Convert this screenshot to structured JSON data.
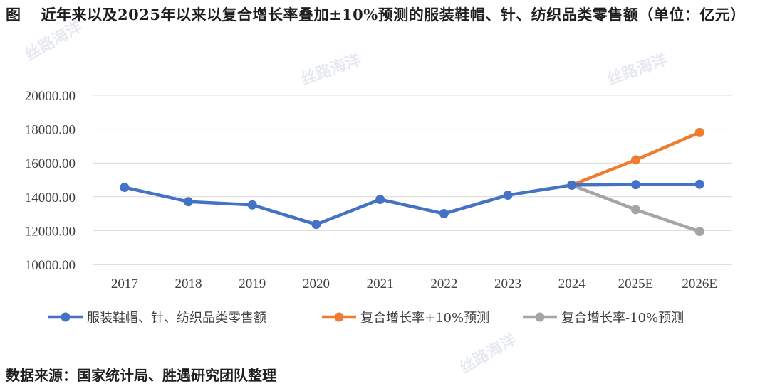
{
  "figure": {
    "label": "图",
    "title": "近年来以及2025年以来以复合增长率叠加±10%预测的服装鞋帽、针、纺织品类零售额（单位：亿元）"
  },
  "source": "数据来源：国家统计局、胜遇研究团队整理",
  "watermark": "丝路海洋",
  "chart_data": {
    "type": "line",
    "categories": [
      "2017",
      "2018",
      "2019",
      "2020",
      "2021",
      "2022",
      "2023",
      "2024",
      "2025E",
      "2026E"
    ],
    "ylim": [
      10000,
      20000
    ],
    "yticks": [
      "10000.00",
      "12000.00",
      "14000.00",
      "16000.00",
      "18000.00",
      "20000.00"
    ],
    "grid": true,
    "legend_position": "bottom",
    "series": [
      {
        "name": "服装鞋帽、针、纺织品类零售额",
        "color": "#4472C4",
        "values": [
          14557,
          13707,
          13517,
          12365,
          13842,
          13003,
          14095,
          14691,
          14720,
          14740
        ]
      },
      {
        "name": "复合增长率+10%预测",
        "color": "#ED7D31",
        "values": [
          null,
          null,
          null,
          null,
          null,
          null,
          null,
          14691,
          16180,
          17800
        ]
      },
      {
        "name": "复合增长率-10%预测",
        "color": "#A5A5A5",
        "values": [
          null,
          null,
          null,
          null,
          null,
          null,
          null,
          14691,
          13240,
          11950
        ]
      }
    ]
  }
}
